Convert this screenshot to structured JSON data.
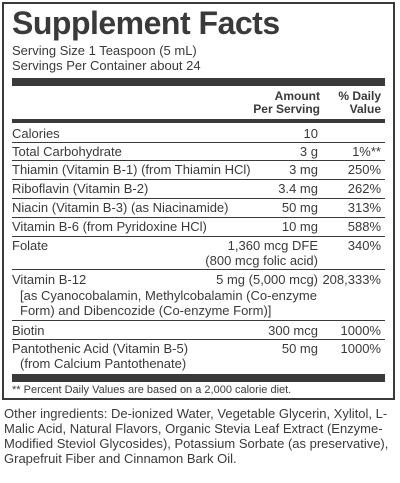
{
  "title": "Supplement Facts",
  "serving_size": "Serving Size 1 Teaspoon (5 mL)",
  "servings_per_container": "Servings Per Container about 24",
  "header": {
    "amount_line1": "Amount",
    "amount_line2": "Per Serving",
    "dv_line1": "% Daily",
    "dv_line2": "Value"
  },
  "rows": [
    {
      "name": "Calories",
      "amount": "10",
      "dv": ""
    },
    {
      "name": "Total Carbohydrate",
      "amount": "3 g",
      "dv": "1%**"
    },
    {
      "name": "Thiamin (Vitamin B-1) (from Thiamin HCl)",
      "amount": "3 mg",
      "dv": "250%"
    },
    {
      "name": "Riboflavin (Vitamin B-2)",
      "amount": "3.4 mg",
      "dv": "262%"
    },
    {
      "name": "Niacin (Vitamin B-3) (as Niacinamide)",
      "amount": "50 mg",
      "dv": "313%"
    },
    {
      "name": "Vitamin B-6 (from Pyridoxine HCl)",
      "amount": "10 mg",
      "dv": "588%"
    },
    {
      "name": "Folate",
      "amount": "1,360 mcg DFE",
      "amount_line2": "(800 mcg folic acid)",
      "dv": "340%"
    },
    {
      "name": "Vitamin B-12",
      "amount": "5 mg (5,000 mcg)",
      "dv": "208,333%",
      "sub": [
        "[as Cyanocobalamin, Methylcobalamin (Co-enzyme",
        "Form) and Dibencozide (Co-enzyme Form)]"
      ]
    },
    {
      "name": "Biotin",
      "amount": "300 mcg",
      "dv": "1000%"
    },
    {
      "name": "Pantothenic Acid (Vitamin B-5)",
      "amount": "50 mg",
      "dv": "1000%",
      "sub": [
        "(from Calcium Pantothenate)"
      ]
    }
  ],
  "footnote": "** Percent Daily Values are based on a 2,000 calorie diet.",
  "other_ingredients": "Other ingredients: De-ionized Water, Vegetable Glycerin, Xylitol, L-Malic Acid, Natural Flavors, Organic Stevia Leaf Extract (Enzyme-Modified Steviol Glycosides), Potassium Sorbate (as preservative), Grapefruit Fiber and Cinnamon Bark Oil."
}
